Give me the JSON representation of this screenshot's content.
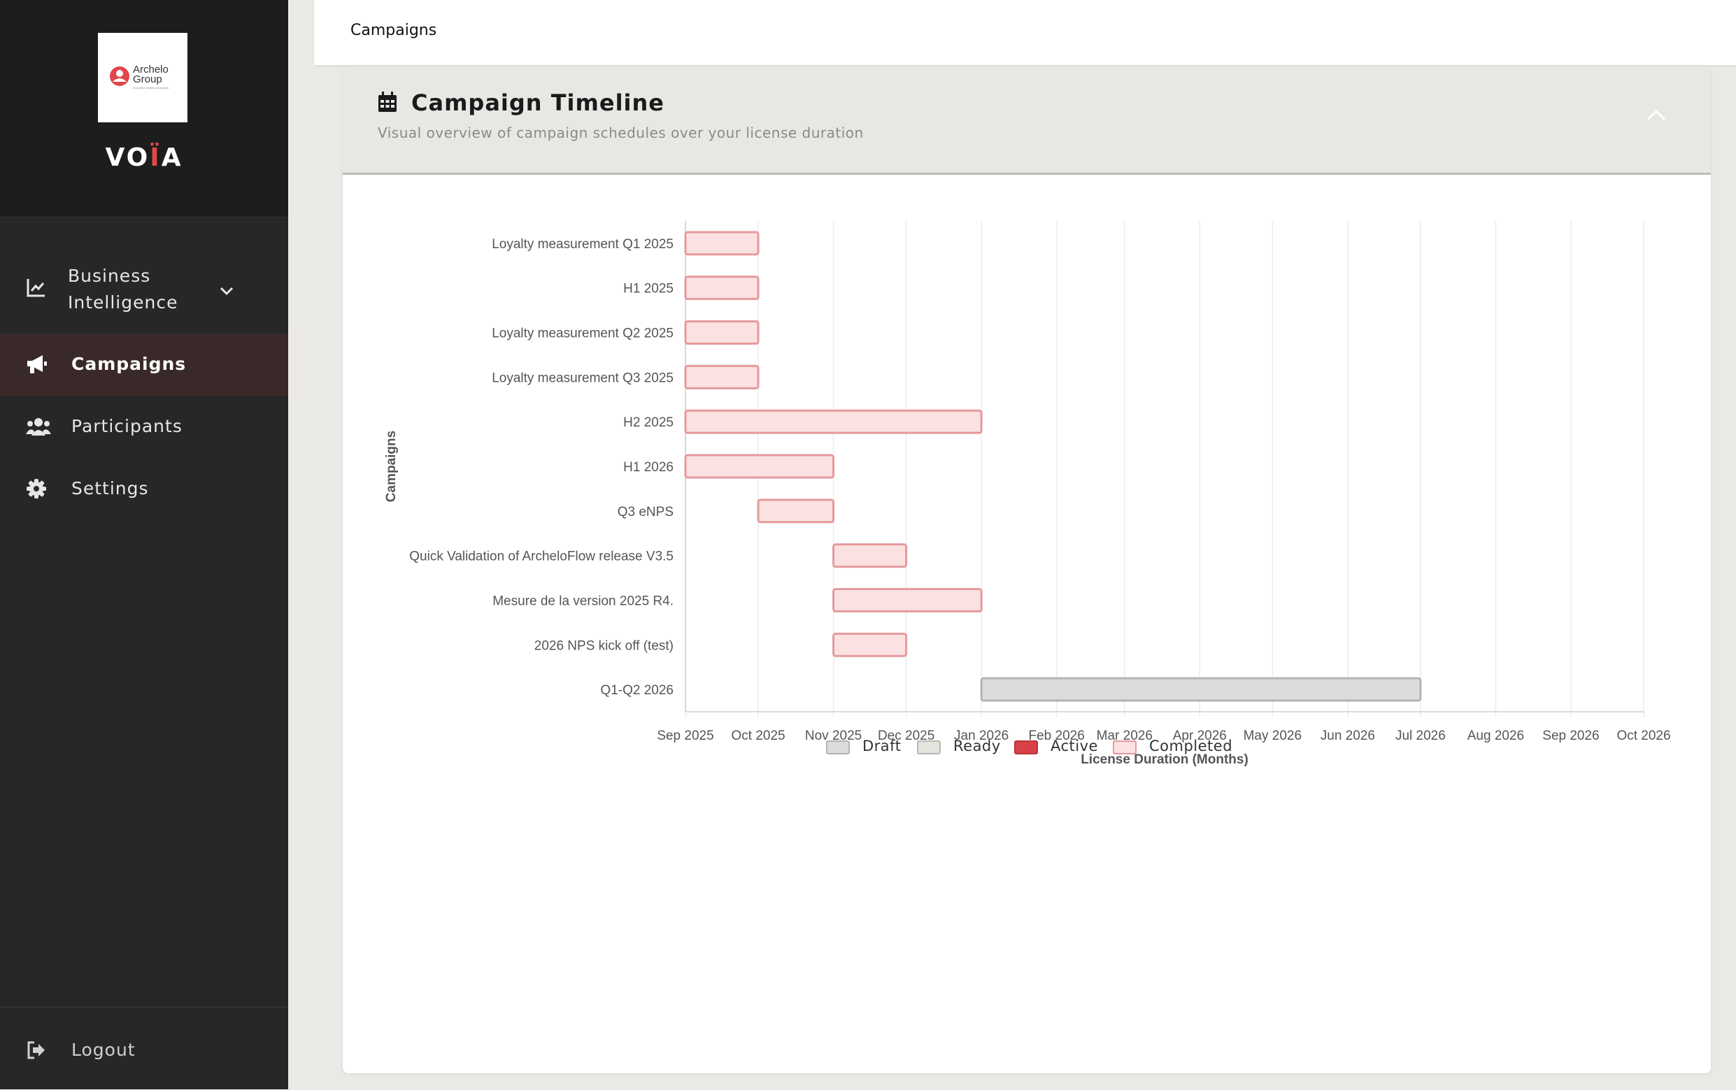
{
  "brand": {
    "logo_name": "Archelo",
    "logo_sub": "Group",
    "logo_tagline": "Innovative Building Solutions",
    "app_name_pre": "VO",
    "app_name_accent": "Ï",
    "app_name_post": "A"
  },
  "sidebar": {
    "items": [
      {
        "label": "Business Intelligence",
        "icon": "chart-line-icon"
      },
      {
        "label": "Campaigns",
        "icon": "megaphone-icon",
        "active": true
      },
      {
        "label": "Participants",
        "icon": "users-icon"
      },
      {
        "label": "Settings",
        "icon": "gear-icon"
      }
    ],
    "logout_label": "Logout"
  },
  "topbar": {
    "title": "Campaigns"
  },
  "card": {
    "title": "Campaign Timeline",
    "subtitle": "Visual overview of campaign schedules over your license duration"
  },
  "colors": {
    "sidebar_bg": "#272727",
    "active_bg": "#3a2929",
    "accent": "#e0474c",
    "completed_fill": "#fbe1e2",
    "completed_border": "#e59a9c",
    "draft_fill": "#dcdcdc",
    "draft_border": "#b3b3b3",
    "ready_fill": "#e4e4df",
    "ready_border": "#b8b8b2",
    "active_fill": "#d94148",
    "active_border": "#b8343a"
  },
  "chart_data": {
    "type": "gantt",
    "ylabel": "Campaigns",
    "xlabel": "License Duration (Months)",
    "x_ticks": [
      "Sep 2025",
      "Oct 2025",
      "Nov 2025",
      "Dec 2025",
      "Jan 2026",
      "Feb 2026",
      "Mar 2026",
      "Apr 2026",
      "May 2026",
      "Jun 2026",
      "Jul 2026",
      "Aug 2026",
      "Sep 2026",
      "Oct 2026"
    ],
    "xlim": [
      "2025-09-01",
      "2026-10-01"
    ],
    "grid": true,
    "legend_position": "bottom",
    "series_names": [
      "Draft",
      "Ready",
      "Active",
      "Completed"
    ],
    "tasks": [
      {
        "name": "Loyalty measurement Q1 2025",
        "start": "2025-09-01",
        "end": "2025-10-01",
        "status": "Completed"
      },
      {
        "name": "H1 2025",
        "start": "2025-09-01",
        "end": "2025-10-01",
        "status": "Completed"
      },
      {
        "name": "Loyalty measurement Q2 2025",
        "start": "2025-09-01",
        "end": "2025-10-01",
        "status": "Completed"
      },
      {
        "name": "Loyalty measurement Q3 2025",
        "start": "2025-09-01",
        "end": "2025-10-01",
        "status": "Completed"
      },
      {
        "name": "H2 2025",
        "start": "2025-09-01",
        "end": "2026-01-01",
        "status": "Completed"
      },
      {
        "name": "H1 2026",
        "start": "2025-09-01",
        "end": "2025-11-01",
        "status": "Completed"
      },
      {
        "name": "Q3 eNPS",
        "start": "2025-10-01",
        "end": "2025-11-01",
        "status": "Completed"
      },
      {
        "name": "Quick Validation of ArcheloFlow release V3.5",
        "start": "2025-11-01",
        "end": "2025-12-01",
        "status": "Completed"
      },
      {
        "name": "Mesure de la version 2025 R4.",
        "start": "2025-11-01",
        "end": "2026-01-01",
        "status": "Completed"
      },
      {
        "name": "2026 NPS kick off (test)",
        "start": "2025-11-01",
        "end": "2025-12-01",
        "status": "Completed"
      },
      {
        "name": "Q1-Q2 2026",
        "start": "2026-01-01",
        "end": "2026-07-01",
        "status": "Draft"
      }
    ]
  }
}
